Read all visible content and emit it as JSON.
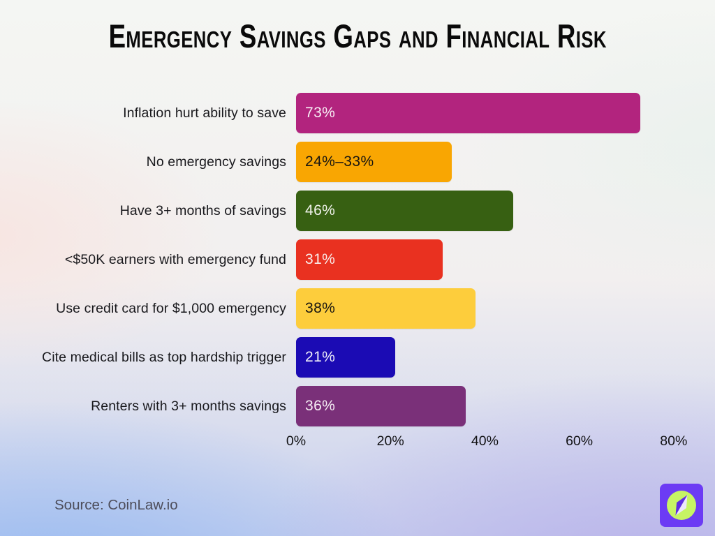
{
  "title": "Emergency Savings Gaps and Financial Risk",
  "source_text": "Source: CoinLaw.io",
  "logo": {
    "icon": "compass-icon",
    "square_color": "#6C3BF4",
    "circle_color": "#C6F464"
  },
  "chart_data": {
    "type": "bar",
    "orientation": "horizontal",
    "title": "Emergency Savings Gaps and Financial Risk",
    "categories": [
      "Inflation hurt ability to save",
      "No emergency savings",
      "Have 3+ months of savings",
      "<$50K earners with emergency fund",
      "Use credit card for $1,000 emergency",
      "Cite medical bills as top hardship trigger",
      "Renters with 3+ months savings"
    ],
    "values": [
      73,
      33,
      46,
      31,
      38,
      21,
      36
    ],
    "value_labels": [
      "73%",
      "24%–33%",
      "46%",
      "31%",
      "38%",
      "21%",
      "36%"
    ],
    "bar_colors": [
      "#B2247E",
      "#F9A602",
      "#376012",
      "#E93120",
      "#FDCD3C",
      "#1B0BB4",
      "#7A3079"
    ],
    "value_text_colors": [
      "#F8EFF5",
      "#171511",
      "#F2F4EE",
      "#F9EEEC",
      "#171511",
      "#EFEFF8",
      "#F6EEF5"
    ],
    "x_ticks": [
      {
        "label": "0%",
        "value": 0
      },
      {
        "label": "20%",
        "value": 20
      },
      {
        "label": "40%",
        "value": 40
      },
      {
        "label": "60%",
        "value": 60
      },
      {
        "label": "80%",
        "value": 80
      }
    ],
    "xlim": [
      0,
      100
    ],
    "axis_max_labeled": 80,
    "grid": false,
    "legend": false
  }
}
